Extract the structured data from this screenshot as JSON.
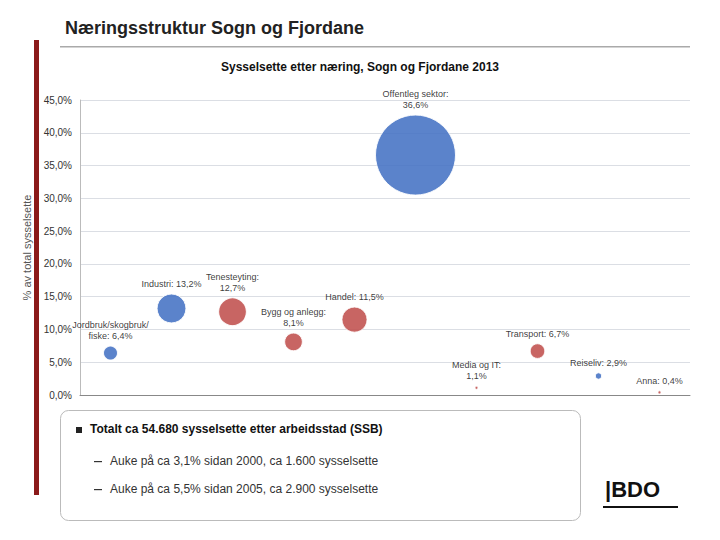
{
  "chart_data": {
    "type": "scatter",
    "title": "Næringsstruktur Sogn og Fjordane",
    "subtitle": "Sysselsette etter næring, Sogn og Fjordane 2013",
    "ylabel": "% av total sysselsette",
    "categories": [
      "Jordbruk/skogbruk/\nfiske: 6,4%",
      "Industri: 13,2%",
      "Tenesteyting:\n12,7%",
      "Bygg og anlegg:\n8,1%",
      "Handel: 11,5%",
      "Offentleg sektor:\n36,6%",
      "Media og IT:\n1,1%",
      "Transport: 6,7%",
      "Reiseliv: 2,9%",
      "Anna: 0,4%"
    ],
    "values": [
      6.4,
      13.2,
      12.7,
      8.1,
      11.5,
      36.6,
      1.1,
      6.7,
      2.9,
      0.4
    ],
    "sizes": [
      6.4,
      13.2,
      12.7,
      8.1,
      11.5,
      36.6,
      1.1,
      6.7,
      2.9,
      0.4
    ],
    "colors": [
      "#4472C4",
      "#4472C4",
      "#C0504D",
      "#C0504D",
      "#C0504D",
      "#4472C4",
      "#C0504D",
      "#C0504D",
      "#4472C4",
      "#C0504D"
    ],
    "ylim": [
      0,
      45
    ],
    "yticks": [
      {
        "value": 0,
        "label": "0,0%"
      },
      {
        "value": 5,
        "label": "5,0%"
      },
      {
        "value": 10,
        "label": "10,0%"
      },
      {
        "value": 15,
        "label": "15,0%"
      },
      {
        "value": 20,
        "label": "20,0%"
      },
      {
        "value": 25,
        "label": "25,0%"
      },
      {
        "value": 30,
        "label": "30,0%"
      },
      {
        "value": 35,
        "label": "35,0%"
      },
      {
        "value": 40,
        "label": "40,0%"
      },
      {
        "value": 45,
        "label": "45,0%"
      }
    ],
    "grid": true,
    "tick_labels": "y",
    "annotations": [
      "Totalt ca 54.680 sysselsette etter arbeidsstad (SSB)",
      "Auke på ca 3,1% sidan 2000, ca 1.600 sysselsette",
      "Auke på ca 5,5% sidan 2005, ca 2.900 sysselsette",
      "|BDO"
    ]
  }
}
